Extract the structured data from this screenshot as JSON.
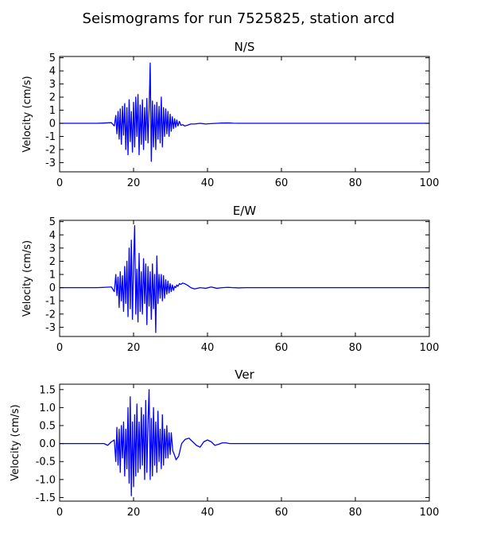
{
  "figure": {
    "title": "Seismograms for run 7525825, station arcd"
  },
  "colors": {
    "trace": "#0000ff"
  },
  "chart_data": [
    {
      "type": "line",
      "title": "N/S",
      "xlabel": "",
      "ylabel": "Velocity (cm/s)",
      "xlim": [
        0,
        100
      ],
      "ylim": [
        -3.7,
        5.1
      ],
      "xticks": [
        0,
        20,
        40,
        60,
        80,
        100
      ],
      "yticks": [
        -3,
        -2,
        -1,
        0,
        1,
        2,
        3,
        4,
        5
      ],
      "grid": false,
      "series": [
        {
          "name": "",
          "x": [
            0,
            10,
            12,
            14,
            14.8,
            15.2,
            15.5,
            15.8,
            16.1,
            16.4,
            16.7,
            17.0,
            17.3,
            17.6,
            17.9,
            18.2,
            18.5,
            18.8,
            19.1,
            19.4,
            19.7,
            20.0,
            20.3,
            20.6,
            20.9,
            21.2,
            21.5,
            21.8,
            22.1,
            22.4,
            22.7,
            23.0,
            23.3,
            23.6,
            23.9,
            24.2,
            24.5,
            24.8,
            25.1,
            25.4,
            25.7,
            26.0,
            26.3,
            26.6,
            26.9,
            27.2,
            27.5,
            27.8,
            28.1,
            28.4,
            28.7,
            29.0,
            29.3,
            29.6,
            29.9,
            30.2,
            30.5,
            30.8,
            31.1,
            31.4,
            31.7,
            32.0,
            32.4,
            32.8,
            33.3,
            33.8,
            34.5,
            35.5,
            36.5,
            38,
            39.5,
            41,
            42.5,
            44,
            45.5,
            47,
            48.5,
            50,
            60,
            70,
            80,
            90,
            100
          ],
          "y": [
            0,
            0,
            0.02,
            0.05,
            -0.2,
            0.6,
            -0.8,
            0.9,
            -1.2,
            1.1,
            -1.6,
            1.3,
            -0.9,
            1.5,
            -2.0,
            1.2,
            -2.4,
            1.8,
            -1.4,
            0.9,
            -2.2,
            1.6,
            -1.8,
            2.0,
            -1.0,
            2.2,
            -2.4,
            1.4,
            -1.6,
            1.8,
            -2.0,
            1.2,
            -1.3,
            1.9,
            -1.5,
            1.0,
            4.6,
            -2.9,
            1.7,
            -1.8,
            1.4,
            -2.0,
            1.6,
            -1.2,
            1.3,
            -1.5,
            2.0,
            -1.8,
            1.2,
            -1.0,
            1.1,
            -0.8,
            0.9,
            -1.0,
            0.7,
            -0.6,
            0.5,
            -0.4,
            0.35,
            -0.3,
            0.25,
            -0.2,
            0.15,
            -0.15,
            -0.1,
            -0.2,
            -0.15,
            -0.05,
            -0.05,
            0.0,
            -0.05,
            -0.02,
            0.0,
            0.02,
            0.03,
            0.01,
            0.0,
            0.0,
            0.0,
            0.0,
            0.0,
            0.0,
            0.0
          ]
        }
      ]
    },
    {
      "type": "line",
      "title": "E/W",
      "xlabel": "",
      "ylabel": "Velocity (cm/s)",
      "xlim": [
        0,
        100
      ],
      "ylim": [
        -3.7,
        5.1
      ],
      "xticks": [
        0,
        20,
        40,
        60,
        80,
        100
      ],
      "yticks": [
        -3,
        -2,
        -1,
        0,
        1,
        2,
        3,
        4,
        5
      ],
      "grid": false,
      "series": [
        {
          "name": "",
          "x": [
            0,
            10,
            12,
            14,
            14.8,
            15.2,
            15.5,
            15.8,
            16.1,
            16.4,
            16.7,
            17.0,
            17.3,
            17.6,
            17.9,
            18.2,
            18.5,
            18.8,
            19.1,
            19.4,
            19.7,
            20.0,
            20.3,
            20.6,
            20.9,
            21.2,
            21.5,
            21.8,
            22.1,
            22.4,
            22.7,
            23.0,
            23.3,
            23.6,
            23.9,
            24.2,
            24.5,
            24.8,
            25.1,
            25.4,
            25.7,
            26.0,
            26.3,
            26.6,
            26.9,
            27.2,
            27.5,
            27.8,
            28.1,
            28.4,
            28.7,
            29.0,
            29.3,
            29.6,
            29.9,
            30.2,
            30.5,
            30.8,
            31.1,
            31.4,
            31.7,
            32.0,
            32.4,
            32.8,
            33.3,
            33.8,
            34.5,
            35.5,
            36.5,
            38,
            39.5,
            41,
            42.5,
            44,
            45.5,
            47,
            48.5,
            50,
            60,
            70,
            80,
            90,
            100
          ],
          "y": [
            0,
            0,
            0.02,
            0.05,
            -0.3,
            1.0,
            -0.6,
            0.8,
            -1.5,
            1.2,
            -1.0,
            0.9,
            -1.8,
            1.6,
            -1.2,
            2.0,
            -2.2,
            3.0,
            -1.6,
            3.6,
            -2.4,
            1.8,
            4.7,
            -2.0,
            1.4,
            -2.6,
            2.6,
            -1.8,
            1.2,
            -2.0,
            2.2,
            -1.2,
            1.8,
            -2.8,
            1.6,
            -1.4,
            1.2,
            -2.4,
            1.8,
            -1.6,
            1.0,
            -3.4,
            2.4,
            -1.2,
            1.0,
            -0.8,
            1.0,
            -1.0,
            0.9,
            -0.8,
            0.6,
            -0.5,
            0.5,
            -0.4,
            0.3,
            -0.3,
            0.2,
            -0.2,
            0.1,
            0.0,
            0.2,
            0.1,
            0.3,
            0.25,
            0.35,
            0.3,
            0.2,
            0.0,
            -0.1,
            0.0,
            -0.05,
            0.05,
            -0.05,
            0.0,
            0.02,
            0.0,
            -0.02,
            0.0,
            0.0,
            0.0,
            0.0,
            0.0,
            0.0
          ]
        }
      ]
    },
    {
      "type": "line",
      "title": "Ver",
      "xlabel": "",
      "ylabel": "Velocity (cm/s)",
      "xlim": [
        0,
        100
      ],
      "ylim": [
        -1.6,
        1.65
      ],
      "xticks": [
        0,
        20,
        40,
        60,
        80,
        100
      ],
      "yticks": [
        -1.5,
        -1.0,
        -0.5,
        0.0,
        0.5,
        1.0,
        1.5
      ],
      "ytick_labels": [
        "-1.5",
        "-1.0",
        "-0.5",
        "0.0",
        "0.5",
        "1.0",
        "1.5"
      ],
      "grid": false,
      "series": [
        {
          "name": "",
          "x": [
            0,
            10,
            12,
            13,
            14,
            14.8,
            15.2,
            15.5,
            15.8,
            16.1,
            16.4,
            16.7,
            17.0,
            17.3,
            17.6,
            17.9,
            18.2,
            18.5,
            18.8,
            19.1,
            19.4,
            19.7,
            20.0,
            20.3,
            20.6,
            20.9,
            21.2,
            21.5,
            21.8,
            22.1,
            22.4,
            22.7,
            23.0,
            23.3,
            23.6,
            23.9,
            24.2,
            24.5,
            24.8,
            25.1,
            25.4,
            25.7,
            26.0,
            26.3,
            26.6,
            26.9,
            27.2,
            27.5,
            27.8,
            28.1,
            28.4,
            28.7,
            29.0,
            29.3,
            29.6,
            29.9,
            30.2,
            30.6,
            31.0,
            31.5,
            32.2,
            33.0,
            34.0,
            35.0,
            36.0,
            37.0,
            38.0,
            39.0,
            40.0,
            41.0,
            42.0,
            43.0,
            44.0,
            45.0,
            46.0,
            47.0,
            48.0,
            50,
            60,
            70,
            80,
            90,
            100
          ],
          "y": [
            0,
            0,
            0.0,
            -0.05,
            0.05,
            0.1,
            -0.5,
            0.45,
            -0.6,
            0.4,
            -0.8,
            0.5,
            -0.4,
            0.6,
            -0.9,
            0.4,
            -0.7,
            1.0,
            -1.1,
            1.3,
            -1.45,
            0.6,
            -1.2,
            0.8,
            -0.9,
            1.1,
            -0.8,
            0.6,
            -0.7,
            1.0,
            -0.6,
            0.8,
            -1.0,
            1.2,
            -0.8,
            0.6,
            1.5,
            -1.0,
            0.7,
            -0.9,
            1.0,
            -0.6,
            0.6,
            -0.8,
            0.9,
            -0.5,
            0.4,
            -0.7,
            0.8,
            -0.6,
            0.4,
            -0.4,
            0.5,
            -0.4,
            0.3,
            -0.3,
            0.3,
            -0.2,
            -0.3,
            -0.45,
            -0.35,
            0.0,
            0.12,
            0.15,
            0.05,
            -0.05,
            -0.1,
            0.05,
            0.1,
            0.05,
            -0.05,
            -0.02,
            0.02,
            0.02,
            0.0,
            0.0,
            0.0,
            0.0,
            0.0,
            0.0,
            0.0,
            0.0,
            0.0
          ]
        }
      ]
    }
  ]
}
